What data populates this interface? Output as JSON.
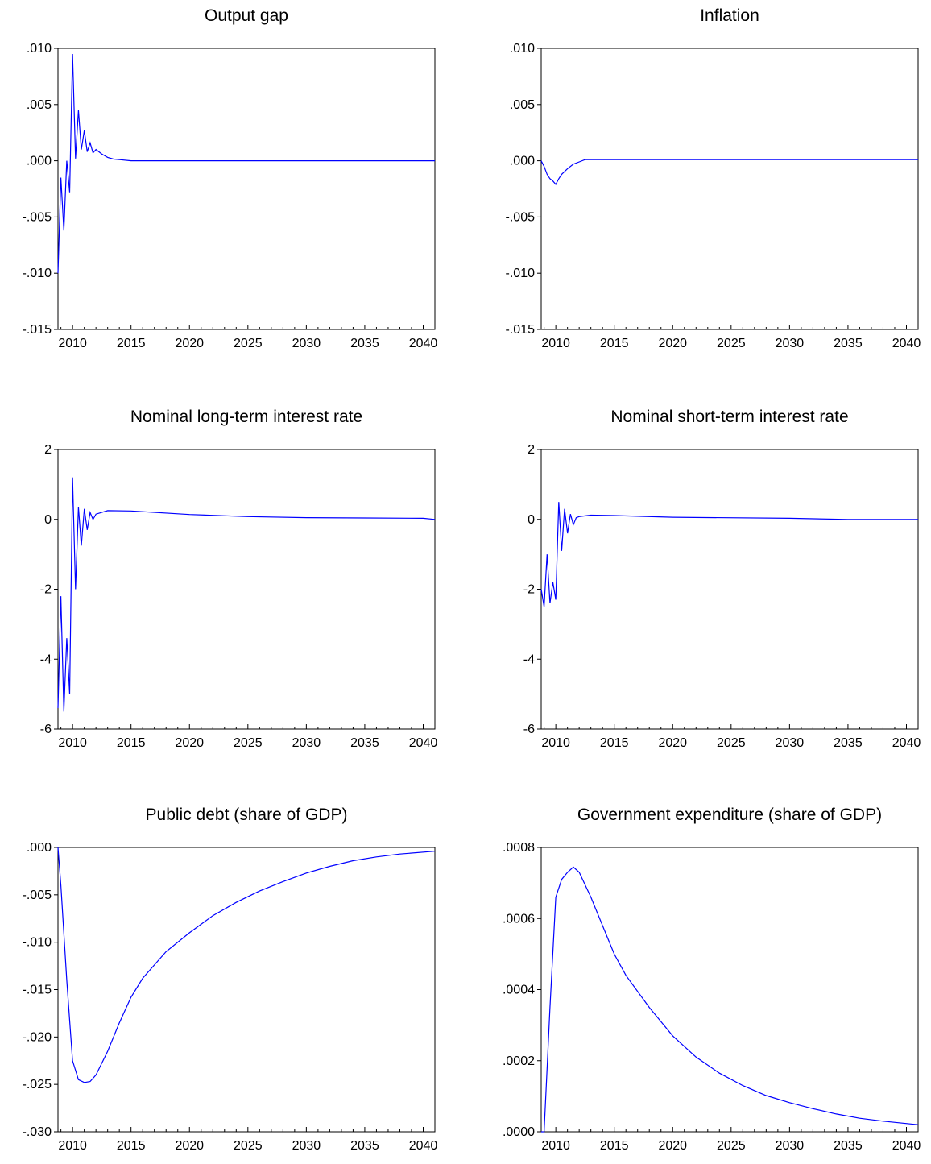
{
  "chart_data": [
    {
      "type": "line",
      "title": "Output gap",
      "xlim": [
        2008.75,
        2041
      ],
      "ylim": [
        -0.015,
        0.01
      ],
      "yticks": [
        0.01,
        0.005,
        0.0,
        -0.005,
        -0.01,
        -0.015
      ],
      "ytick_labels": [
        ".010",
        ".005",
        ".000",
        "-.005",
        "-.010",
        "-.015"
      ],
      "xticks": [
        2010,
        2015,
        2020,
        2025,
        2030,
        2035,
        2040
      ],
      "xtick_labels": [
        "2010",
        "2015",
        "2020",
        "2025",
        "2030",
        "2035",
        "2040"
      ],
      "grid": false,
      "legend": "none",
      "line_color": "#0000ff",
      "series": [
        {
          "x": [
            2008.75,
            2009.0,
            2009.25,
            2009.5,
            2009.75,
            2010.0,
            2010.25,
            2010.5,
            2010.75,
            2011.0,
            2011.25,
            2011.5,
            2011.75,
            2012.0,
            2012.5,
            2013.0,
            2013.5,
            2014.0,
            2015.0,
            2020.0,
            2030.0,
            2041.0
          ],
          "y": [
            -0.01,
            -0.0015,
            -0.0062,
            0.0,
            -0.0028,
            0.0095,
            0.0002,
            0.0045,
            0.001,
            0.0027,
            0.0008,
            0.0016,
            0.0007,
            0.001,
            0.0006,
            0.0003,
            0.00015,
            0.0001,
            0.0,
            0.0,
            0.0,
            0.0
          ]
        }
      ]
    },
    {
      "type": "line",
      "title": "Inflation",
      "xlim": [
        2008.75,
        2041
      ],
      "ylim": [
        -0.015,
        0.01
      ],
      "yticks": [
        0.01,
        0.005,
        0.0,
        -0.005,
        -0.01,
        -0.015
      ],
      "ytick_labels": [
        ".010",
        ".005",
        ".000",
        "-.005",
        "-.010",
        "-.015"
      ],
      "xticks": [
        2010,
        2015,
        2020,
        2025,
        2030,
        2035,
        2040
      ],
      "xtick_labels": [
        "2010",
        "2015",
        "2020",
        "2025",
        "2030",
        "2035",
        "2040"
      ],
      "grid": false,
      "legend": "none",
      "line_color": "#0000ff",
      "series": [
        {
          "x": [
            2008.75,
            2009.0,
            2009.25,
            2009.5,
            2009.75,
            2010.0,
            2010.25,
            2010.5,
            2011.0,
            2011.5,
            2012.0,
            2012.5,
            2013.0,
            2020.0,
            2030.0,
            2041.0
          ],
          "y": [
            0.0,
            -0.0005,
            -0.0012,
            -0.0016,
            -0.0018,
            -0.0021,
            -0.0016,
            -0.0012,
            -0.0007,
            -0.0003,
            -0.0001,
            0.0001,
            0.0001,
            0.0001,
            0.0001,
            0.0001
          ]
        }
      ]
    },
    {
      "type": "line",
      "title": "Nominal long-term interest rate",
      "xlim": [
        2008.75,
        2041
      ],
      "ylim": [
        -6,
        2
      ],
      "yticks": [
        2,
        0,
        -2,
        -4,
        -6
      ],
      "ytick_labels": [
        "2",
        "0",
        "-2",
        "-4",
        "-6"
      ],
      "xticks": [
        2010,
        2015,
        2020,
        2025,
        2030,
        2035,
        2040
      ],
      "xtick_labels": [
        "2010",
        "2015",
        "2020",
        "2025",
        "2030",
        "2035",
        "2040"
      ],
      "grid": false,
      "legend": "none",
      "line_color": "#0000ff",
      "series": [
        {
          "x": [
            2008.75,
            2009.0,
            2009.25,
            2009.5,
            2009.75,
            2010.0,
            2010.25,
            2010.5,
            2010.75,
            2011.0,
            2011.25,
            2011.5,
            2011.75,
            2012.0,
            2012.5,
            2013.0,
            2015.0,
            2020.0,
            2025.0,
            2030.0,
            2035.0,
            2040.0,
            2041.0
          ],
          "y": [
            -5.4,
            -2.2,
            -5.5,
            -3.4,
            -5.0,
            1.2,
            -2.0,
            0.35,
            -0.75,
            0.3,
            -0.3,
            0.2,
            0.0,
            0.15,
            0.2,
            0.25,
            0.24,
            0.14,
            0.08,
            0.05,
            0.04,
            0.03,
            0.0
          ]
        }
      ]
    },
    {
      "type": "line",
      "title": "Nominal short-term interest rate",
      "xlim": [
        2008.75,
        2041
      ],
      "ylim": [
        -6,
        2
      ],
      "yticks": [
        2,
        0,
        -2,
        -4,
        -6
      ],
      "ytick_labels": [
        "2",
        "0",
        "-2",
        "-4",
        "-6"
      ],
      "xticks": [
        2010,
        2015,
        2020,
        2025,
        2030,
        2035,
        2040
      ],
      "xtick_labels": [
        "2010",
        "2015",
        "2020",
        "2025",
        "2030",
        "2035",
        "2040"
      ],
      "grid": false,
      "legend": "none",
      "line_color": "#0000ff",
      "series": [
        {
          "x": [
            2008.75,
            2009.0,
            2009.25,
            2009.5,
            2009.75,
            2010.0,
            2010.25,
            2010.5,
            2010.75,
            2011.0,
            2011.25,
            2011.5,
            2011.75,
            2012.0,
            2012.5,
            2013.0,
            2015.0,
            2020.0,
            2030.0,
            2035.0,
            2041.0
          ],
          "y": [
            -2.0,
            -2.5,
            -1.0,
            -2.4,
            -1.8,
            -2.3,
            0.5,
            -0.9,
            0.3,
            -0.4,
            0.15,
            -0.15,
            0.05,
            0.08,
            0.1,
            0.12,
            0.11,
            0.06,
            0.03,
            0.0,
            0.0
          ]
        }
      ]
    },
    {
      "type": "line",
      "title": "Public debt (share of GDP)",
      "xlim": [
        2008.75,
        2041
      ],
      "ylim": [
        -0.03,
        0.0
      ],
      "yticks": [
        0.0,
        -0.005,
        -0.01,
        -0.015,
        -0.02,
        -0.025,
        -0.03
      ],
      "ytick_labels": [
        ".000",
        "-.005",
        "-.010",
        "-.015",
        "-.020",
        "-.025",
        "-.030"
      ],
      "xticks": [
        2010,
        2015,
        2020,
        2025,
        2030,
        2035,
        2040
      ],
      "xtick_labels": [
        "2010",
        "2015",
        "2020",
        "2025",
        "2030",
        "2035",
        "2040"
      ],
      "grid": false,
      "legend": "none",
      "line_color": "#0000ff",
      "series": [
        {
          "x": [
            2008.75,
            2009.0,
            2009.5,
            2010.0,
            2010.5,
            2011.0,
            2011.5,
            2012.0,
            2013.0,
            2014.0,
            2015.0,
            2016.0,
            2018.0,
            2020.0,
            2022.0,
            2024.0,
            2026.0,
            2028.0,
            2030.0,
            2032.0,
            2034.0,
            2036.0,
            2038.0,
            2041.0
          ],
          "y": [
            0.0,
            -0.004,
            -0.014,
            -0.0225,
            -0.0245,
            -0.0248,
            -0.0247,
            -0.024,
            -0.0215,
            -0.0185,
            -0.0158,
            -0.0138,
            -0.011,
            -0.009,
            -0.0072,
            -0.0058,
            -0.0046,
            -0.0036,
            -0.0027,
            -0.002,
            -0.0014,
            -0.001,
            -0.0007,
            -0.0004
          ]
        }
      ]
    },
    {
      "type": "line",
      "title": "Government expenditure (share of GDP)",
      "xlim": [
        2008.75,
        2041
      ],
      "ylim": [
        0.0,
        0.0008
      ],
      "yticks": [
        0.0008,
        0.0006,
        0.0004,
        0.0002,
        0.0
      ],
      "ytick_labels": [
        ".0008",
        ".0006",
        ".0004",
        ".0002",
        ".0000"
      ],
      "xticks": [
        2010,
        2015,
        2020,
        2025,
        2030,
        2035,
        2040
      ],
      "xtick_labels": [
        "2010",
        "2015",
        "2020",
        "2025",
        "2030",
        "2035",
        "2040"
      ],
      "grid": false,
      "legend": "none",
      "line_color": "#0000ff",
      "series": [
        {
          "x": [
            2008.75,
            2009.0,
            2009.5,
            2010.0,
            2010.5,
            2011.0,
            2011.5,
            2012.0,
            2013.0,
            2014.0,
            2015.0,
            2016.0,
            2018.0,
            2020.0,
            2022.0,
            2024.0,
            2026.0,
            2028.0,
            2030.0,
            2032.0,
            2034.0,
            2036.0,
            2038.0,
            2041.0
          ],
          "y": [
            0.0,
            0.0,
            0.00035,
            0.00066,
            0.00071,
            0.00073,
            0.000745,
            0.00073,
            0.00066,
            0.00058,
            0.0005,
            0.00044,
            0.00035,
            0.00027,
            0.00021,
            0.000165,
            0.00013,
            0.000102,
            8.2e-05,
            6.5e-05,
            5e-05,
            3.8e-05,
            3e-05,
            2e-05
          ]
        }
      ]
    }
  ]
}
